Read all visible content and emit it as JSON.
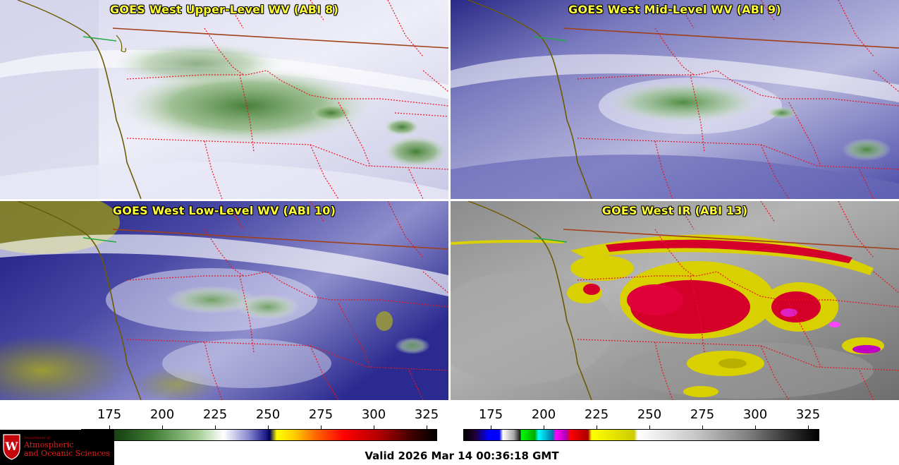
{
  "panels": [
    {
      "title": "GOES West Upper-Level WV (ABI 8)"
    },
    {
      "title": "GOES West Mid-Level WV (ABI 9)"
    },
    {
      "title": "GOES West Low-Level WV (ABI 10)"
    },
    {
      "title": "GOES West IR (ABI 13)"
    }
  ],
  "colorbars": {
    "wv": {
      "ticks": [
        "175",
        "200",
        "225",
        "250",
        "275",
        "300",
        "325"
      ]
    },
    "ir": {
      "ticks": [
        "175",
        "200",
        "225",
        "250",
        "275",
        "300",
        "325"
      ]
    }
  },
  "logo": {
    "department": "Department of",
    "line1": "Atmospheric",
    "line2": "and Oceanic Sciences",
    "crest_letter": "W"
  },
  "valid_time": "Valid 2026 Mar 14 00:36:18 GMT",
  "colors": {
    "title_text": "#ffff33",
    "state_border": "#e8141e",
    "coastline": "#6b5a00",
    "country_border": "#a0401a"
  }
}
